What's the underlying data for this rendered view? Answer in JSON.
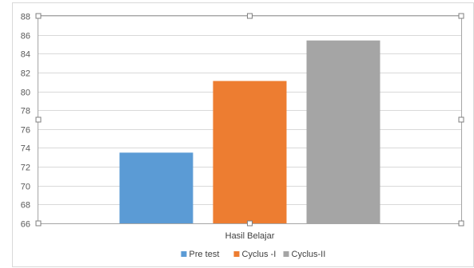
{
  "chart_data": {
    "type": "bar",
    "categories": [
      "Hasil Belajar"
    ],
    "series": [
      {
        "name": "Pre test",
        "values": [
          73.5
        ],
        "color": "#5B9BD5"
      },
      {
        "name": "Cyclus -I",
        "values": [
          81.1
        ],
        "color": "#ED7D31"
      },
      {
        "name": "Cyclus-II",
        "values": [
          85.4
        ],
        "color": "#A5A5A5"
      }
    ],
    "ylim": [
      66,
      88
    ],
    "yticks": [
      66,
      68,
      70,
      72,
      74,
      76,
      78,
      80,
      82,
      84,
      86,
      88
    ],
    "grid": true,
    "legend": "bottom"
  }
}
